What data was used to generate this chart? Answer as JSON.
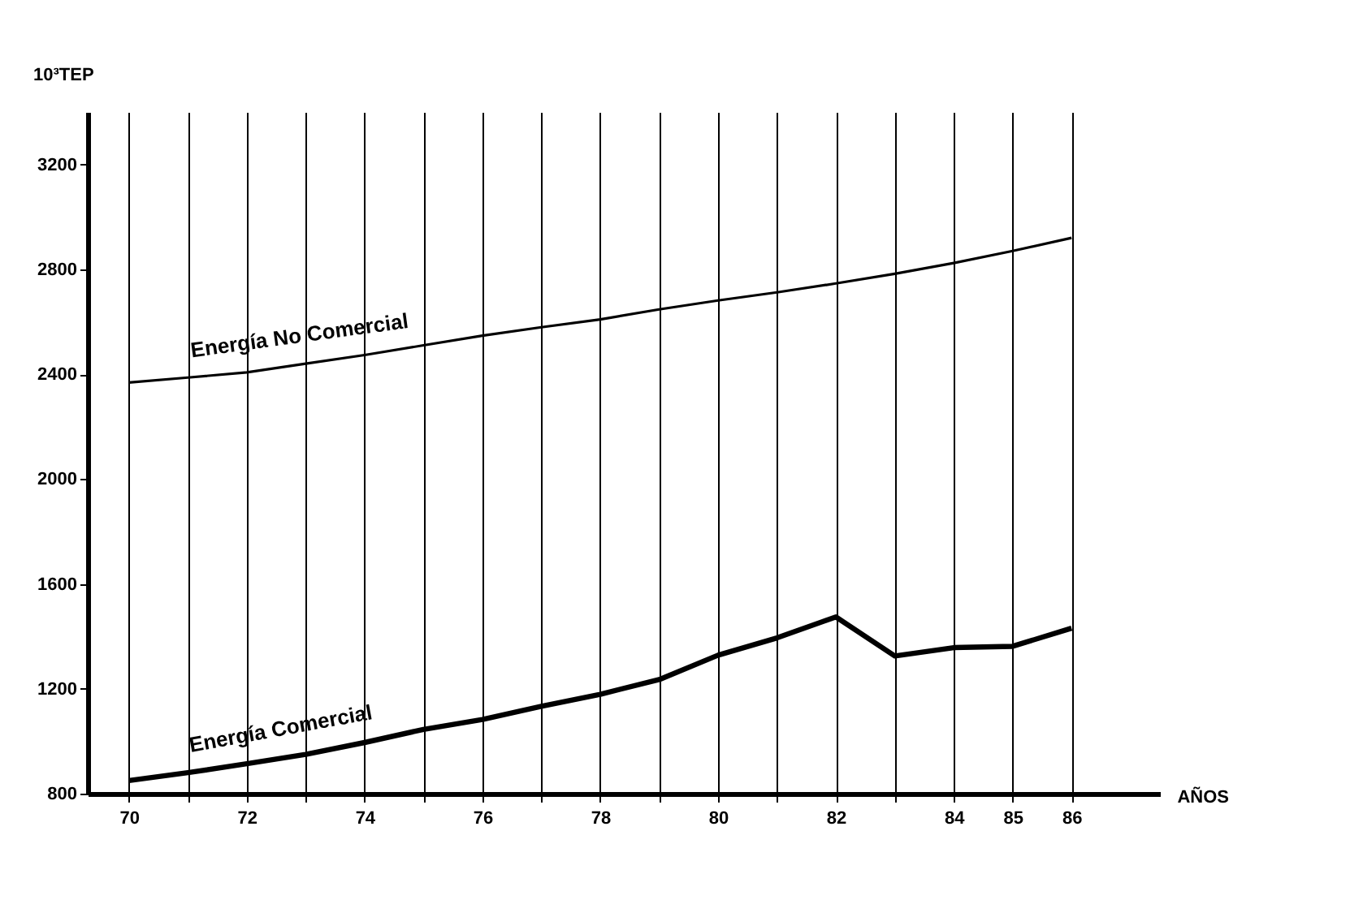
{
  "chart_data": {
    "type": "line",
    "xlabel": "AÑOS",
    "ylabel": "10³TEP",
    "x": [
      70,
      71,
      72,
      73,
      74,
      75,
      76,
      77,
      78,
      79,
      80,
      81,
      82,
      83,
      84,
      85,
      86
    ],
    "series": [
      {
        "name": "Energía No Comercial",
        "color": "#000000",
        "values": [
          2368,
          2387,
          2407,
          2440,
          2473,
          2510,
          2547,
          2579,
          2609,
          2647,
          2681,
          2712,
          2746,
          2783,
          2824,
          2870,
          2920
        ]
      },
      {
        "name": "Energía Comercial",
        "color": "#000000",
        "values": [
          850,
          880,
          914,
          950,
          995,
          1045,
          1083,
          1133,
          1179,
          1235,
          1328,
          1394,
          1474,
          1325,
          1357,
          1362,
          1431
        ]
      }
    ],
    "xlim": [
      69.3,
      87.5
    ],
    "xticks": [
      70,
      {
        "value": 71,
        "label": null
      },
      72,
      {
        "value": 73,
        "label": null
      },
      74,
      {
        "value": 75,
        "label": null
      },
      76,
      {
        "value": 77,
        "label": null
      },
      78,
      {
        "value": 79,
        "label": null
      },
      80,
      {
        "value": 81,
        "label": null
      },
      82,
      {
        "value": 83,
        "label": null
      },
      84,
      85,
      86
    ],
    "ylim": [
      800,
      3400
    ],
    "yticks": [
      800,
      1200,
      1600,
      2000,
      2400,
      2800,
      3200
    ],
    "grid": "x",
    "legend": false,
    "marker": "none",
    "line_style": "solid"
  }
}
